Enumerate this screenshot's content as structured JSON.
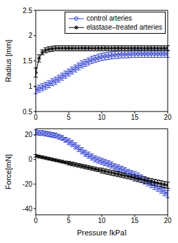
{
  "chart_data": [
    {
      "type": "line",
      "y_label": "Radius [mm]",
      "legend": "upper right",
      "x": [
        0,
        0.5,
        1,
        1.5,
        2,
        2.5,
        3,
        3.5,
        4,
        4.5,
        5,
        5.5,
        6,
        6.5,
        7,
        7.5,
        8,
        8.5,
        9,
        9.5,
        10,
        10.5,
        11,
        11.5,
        12,
        12.5,
        13,
        13.5,
        14,
        14.5,
        15,
        15.5,
        16,
        16.5,
        17,
        17.5,
        18,
        18.5,
        19,
        19.5,
        20
      ],
      "xlim": [
        0,
        20
      ],
      "xticks": [
        0,
        5,
        10,
        15,
        20
      ],
      "ylim": [
        0.5,
        2.5
      ],
      "yticks": [
        0.5,
        1,
        1.5,
        2,
        2.5
      ],
      "series": [
        {
          "name": "control arteries",
          "color": "#2f3fd0",
          "marker": "circle",
          "values": [
            0.92,
            0.95,
            0.98,
            1.01,
            1.04,
            1.08,
            1.11,
            1.15,
            1.19,
            1.23,
            1.27,
            1.31,
            1.35,
            1.39,
            1.43,
            1.46,
            1.49,
            1.52,
            1.54,
            1.56,
            1.58,
            1.59,
            1.6,
            1.61,
            1.62,
            1.62,
            1.63,
            1.63,
            1.63,
            1.64,
            1.64,
            1.64,
            1.64,
            1.64,
            1.64,
            1.64,
            1.64,
            1.64,
            1.64,
            1.64,
            1.64
          ],
          "error": [
            0.07,
            0.07,
            0.07,
            0.07,
            0.07,
            0.07,
            0.07,
            0.07,
            0.07,
            0.07,
            0.07,
            0.07,
            0.07,
            0.07,
            0.07,
            0.07,
            0.07,
            0.07,
            0.07,
            0.07,
            0.07,
            0.07,
            0.07,
            0.07,
            0.07,
            0.07,
            0.07,
            0.07,
            0.07,
            0.07,
            0.07,
            0.07,
            0.07,
            0.07,
            0.07,
            0.07,
            0.07,
            0.07,
            0.07,
            0.07,
            0.07
          ]
        },
        {
          "name": "elastase–treated arteries",
          "color": "#000000",
          "marker": "star",
          "values": [
            1.27,
            1.55,
            1.67,
            1.71,
            1.73,
            1.74,
            1.75,
            1.75,
            1.75,
            1.75,
            1.75,
            1.75,
            1.75,
            1.75,
            1.75,
            1.75,
            1.75,
            1.75,
            1.75,
            1.75,
            1.75,
            1.75,
            1.75,
            1.75,
            1.75,
            1.75,
            1.75,
            1.75,
            1.75,
            1.75,
            1.75,
            1.75,
            1.75,
            1.75,
            1.75,
            1.75,
            1.75,
            1.75,
            1.75,
            1.75,
            1.75
          ],
          "error": [
            0.09,
            0.07,
            0.05,
            0.05,
            0.05,
            0.05,
            0.05,
            0.05,
            0.05,
            0.05,
            0.05,
            0.05,
            0.05,
            0.05,
            0.05,
            0.05,
            0.05,
            0.05,
            0.05,
            0.05,
            0.05,
            0.05,
            0.05,
            0.05,
            0.05,
            0.05,
            0.05,
            0.05,
            0.05,
            0.05,
            0.05,
            0.05,
            0.05,
            0.05,
            0.05,
            0.05,
            0.05,
            0.05,
            0.05,
            0.05,
            0.05
          ]
        }
      ]
    },
    {
      "type": "line",
      "x_label": "Pressure [kPa]",
      "y_label": "Force[mN]",
      "x": [
        0,
        0.5,
        1,
        1.5,
        2,
        2.5,
        3,
        3.5,
        4,
        4.5,
        5,
        5.5,
        6,
        6.5,
        7,
        7.5,
        8,
        8.5,
        9,
        9.5,
        10,
        10.5,
        11,
        11.5,
        12,
        12.5,
        13,
        13.5,
        14,
        14.5,
        15,
        15.5,
        16,
        16.5,
        17,
        17.5,
        18,
        18.5,
        19,
        19.5,
        20
      ],
      "xlim": [
        0,
        20
      ],
      "xticks": [
        0,
        5,
        10,
        15,
        20
      ],
      "ylim": [
        -45,
        25
      ],
      "yticks": [
        -40,
        -20,
        0,
        20
      ],
      "series": [
        {
          "color": "#2f3fd0",
          "marker": "circle",
          "values": [
            22,
            21.5,
            21.5,
            21,
            20.5,
            20,
            19.5,
            18.5,
            17.5,
            16,
            14.5,
            13,
            11,
            9,
            7,
            5,
            3.5,
            2,
            0.5,
            -0.5,
            -1.5,
            -2.5,
            -3.5,
            -4.5,
            -6,
            -7,
            -8,
            -9,
            -10.5,
            -11.5,
            -13,
            -14,
            -15.5,
            -17,
            -18.5,
            -20,
            -21.5,
            -23,
            -24.5,
            -26.5,
            -28
          ],
          "error": [
            2,
            2,
            2,
            2,
            2,
            2,
            2,
            2,
            2,
            2,
            2.5,
            2.5,
            2.5,
            2.5,
            2.5,
            2.5,
            2.5,
            2.5,
            2.5,
            2.5,
            2.5,
            2.5,
            2.5,
            2.5,
            2.5,
            2.5,
            2.5,
            2.5,
            2.5,
            2.5,
            3,
            3,
            3,
            3,
            3,
            3,
            3,
            3,
            3,
            3,
            3
          ]
        },
        {
          "color": "#000000",
          "marker": "star",
          "values": [
            3,
            2.4,
            1.8,
            1.2,
            0.6,
            0,
            -0.6,
            -1.2,
            -1.8,
            -2.4,
            -3,
            -3.6,
            -4.2,
            -4.8,
            -5.4,
            -6,
            -6.6,
            -7.2,
            -7.8,
            -8.4,
            -9,
            -9.6,
            -10.2,
            -10.8,
            -11.4,
            -12,
            -12.6,
            -13.2,
            -13.8,
            -14.4,
            -15,
            -15.6,
            -16.2,
            -16.8,
            -17.4,
            -18,
            -18.6,
            -19.2,
            -19.8,
            -20.4,
            -21
          ],
          "error": [
            1,
            1,
            1,
            1,
            1,
            1,
            1,
            1,
            1,
            1,
            1.5,
            1.5,
            1.5,
            1.5,
            1.5,
            1.5,
            1.5,
            1.5,
            1.5,
            1.5,
            2,
            2,
            2,
            2,
            2,
            2,
            2,
            2,
            2,
            2,
            2.5,
            2.5,
            2.5,
            2.5,
            2.5,
            2.5,
            2.5,
            2.5,
            2.5,
            2.5,
            2.5
          ]
        }
      ]
    }
  ]
}
